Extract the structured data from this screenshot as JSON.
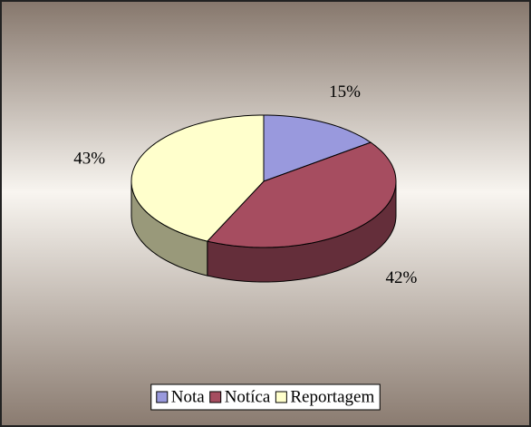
{
  "chart_data": {
    "type": "pie",
    "categories": [
      "Nota",
      "Notíca",
      "Reportagem"
    ],
    "values": [
      15,
      42,
      43
    ],
    "value_labels": [
      "15%",
      "42%",
      "43%"
    ],
    "colors": [
      "#9999dd",
      "#a64d60",
      "#ffffcc"
    ],
    "legend": "bottom"
  }
}
